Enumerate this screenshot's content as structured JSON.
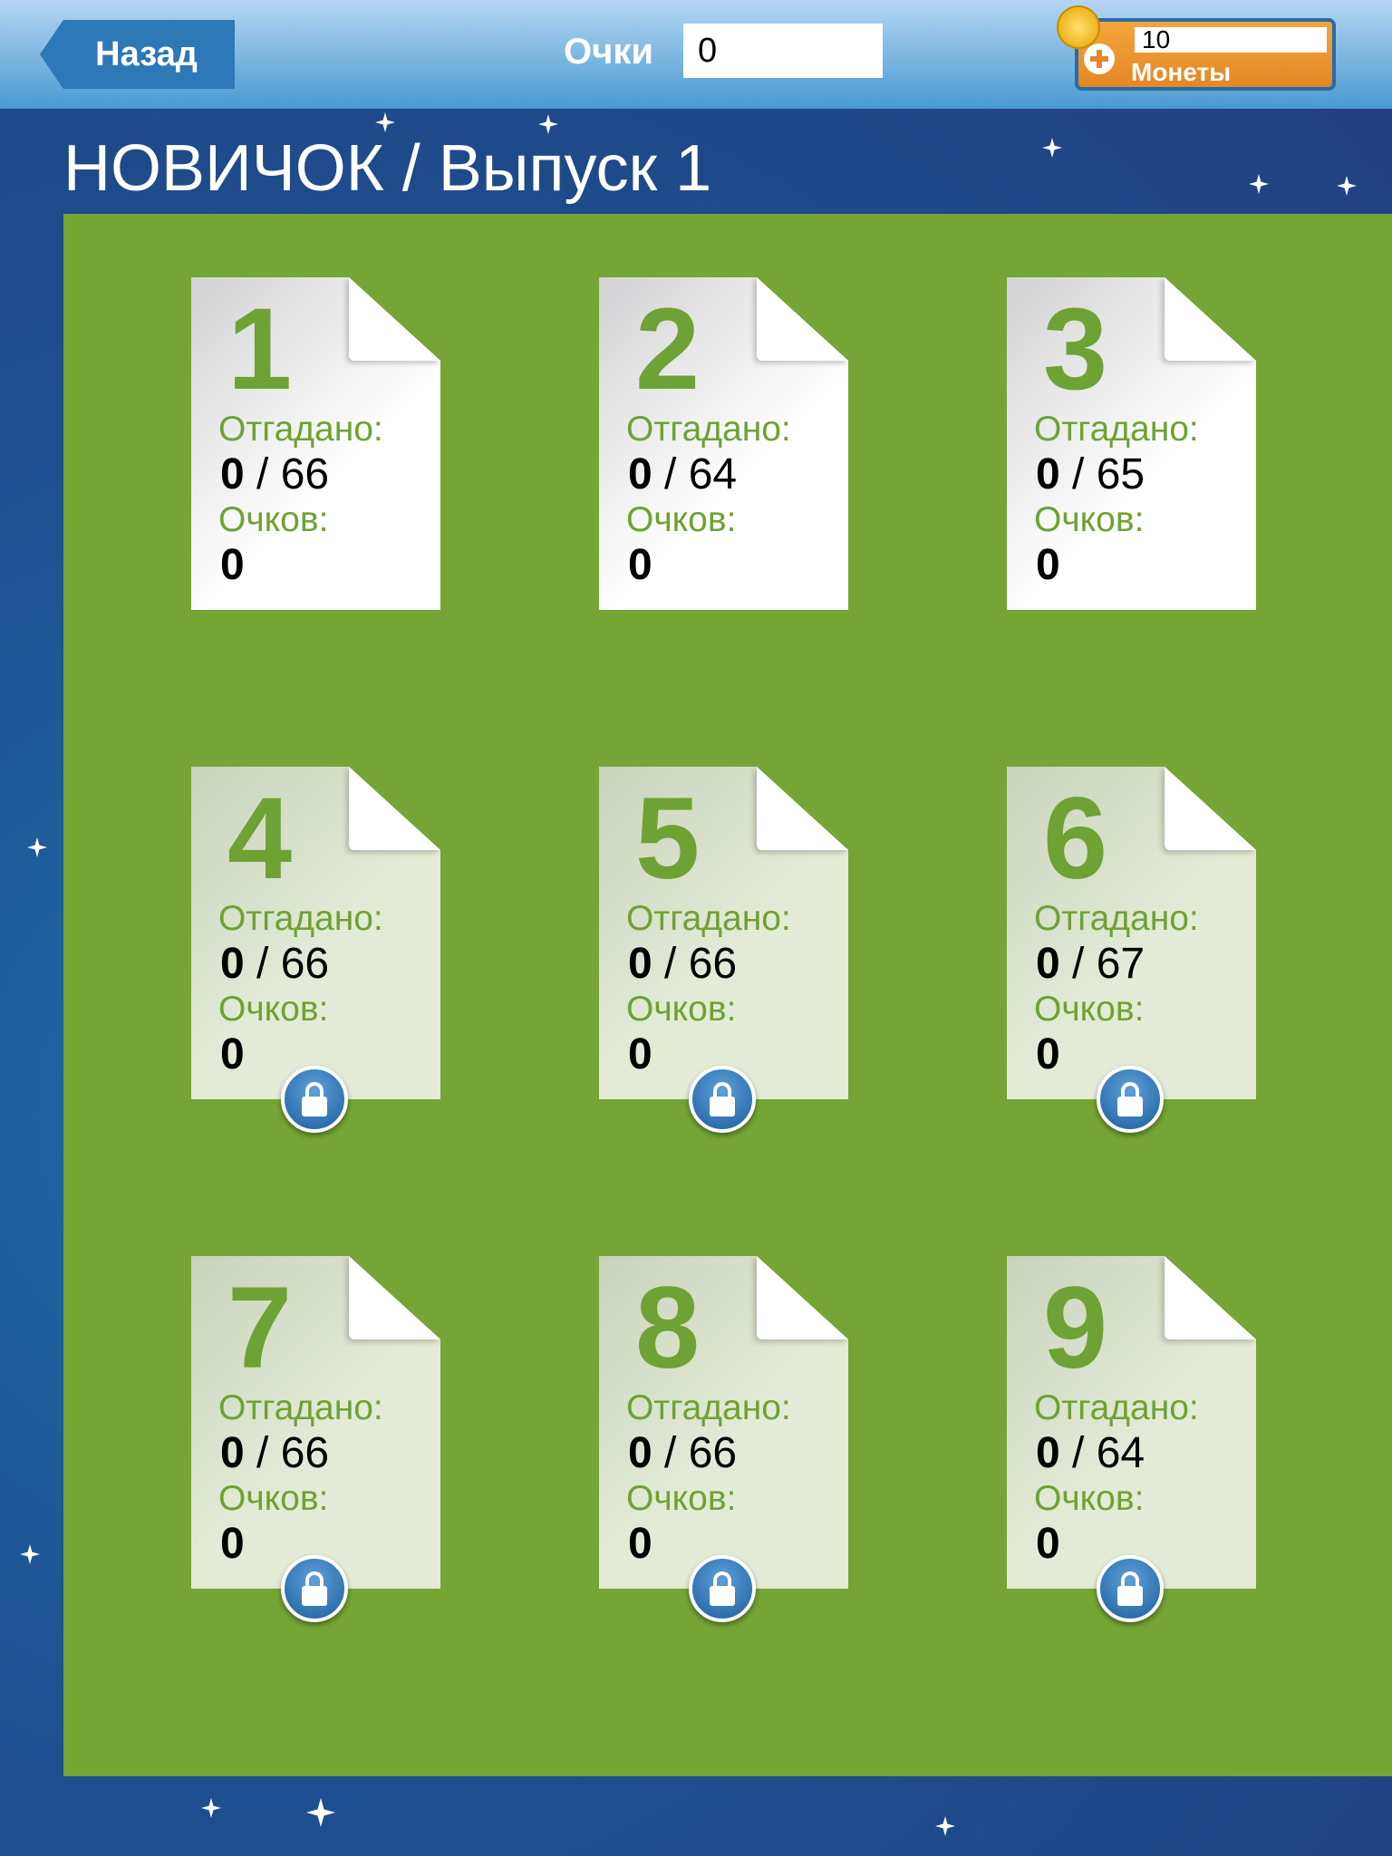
{
  "header": {
    "back_label": "Назад",
    "score_label": "Очки",
    "score_value": "0",
    "coins_value": "10",
    "coins_label": "Монеты"
  },
  "title": "НОВИЧОК / Выпуск 1",
  "labels": {
    "guessed": "Отгадано:",
    "points": "Очков:"
  },
  "colors": {
    "panel": "#74a535",
    "accent_green": "#6ea234",
    "header": "#4a9ad2",
    "coins": "#e48726",
    "lock": "#1d5e9e"
  },
  "levels": [
    {
      "number": "1",
      "guessed": "0",
      "total": "66",
      "points": "0",
      "locked": false
    },
    {
      "number": "2",
      "guessed": "0",
      "total": "64",
      "points": "0",
      "locked": false
    },
    {
      "number": "3",
      "guessed": "0",
      "total": "65",
      "points": "0",
      "locked": false
    },
    {
      "number": "4",
      "guessed": "0",
      "total": "66",
      "points": "0",
      "locked": true
    },
    {
      "number": "5",
      "guessed": "0",
      "total": "66",
      "points": "0",
      "locked": true
    },
    {
      "number": "6",
      "guessed": "0",
      "total": "67",
      "points": "0",
      "locked": true
    },
    {
      "number": "7",
      "guessed": "0",
      "total": "66",
      "points": "0",
      "locked": true
    },
    {
      "number": "8",
      "guessed": "0",
      "total": "66",
      "points": "0",
      "locked": true
    },
    {
      "number": "9",
      "guessed": "0",
      "total": "64",
      "points": "0",
      "locked": true
    }
  ]
}
